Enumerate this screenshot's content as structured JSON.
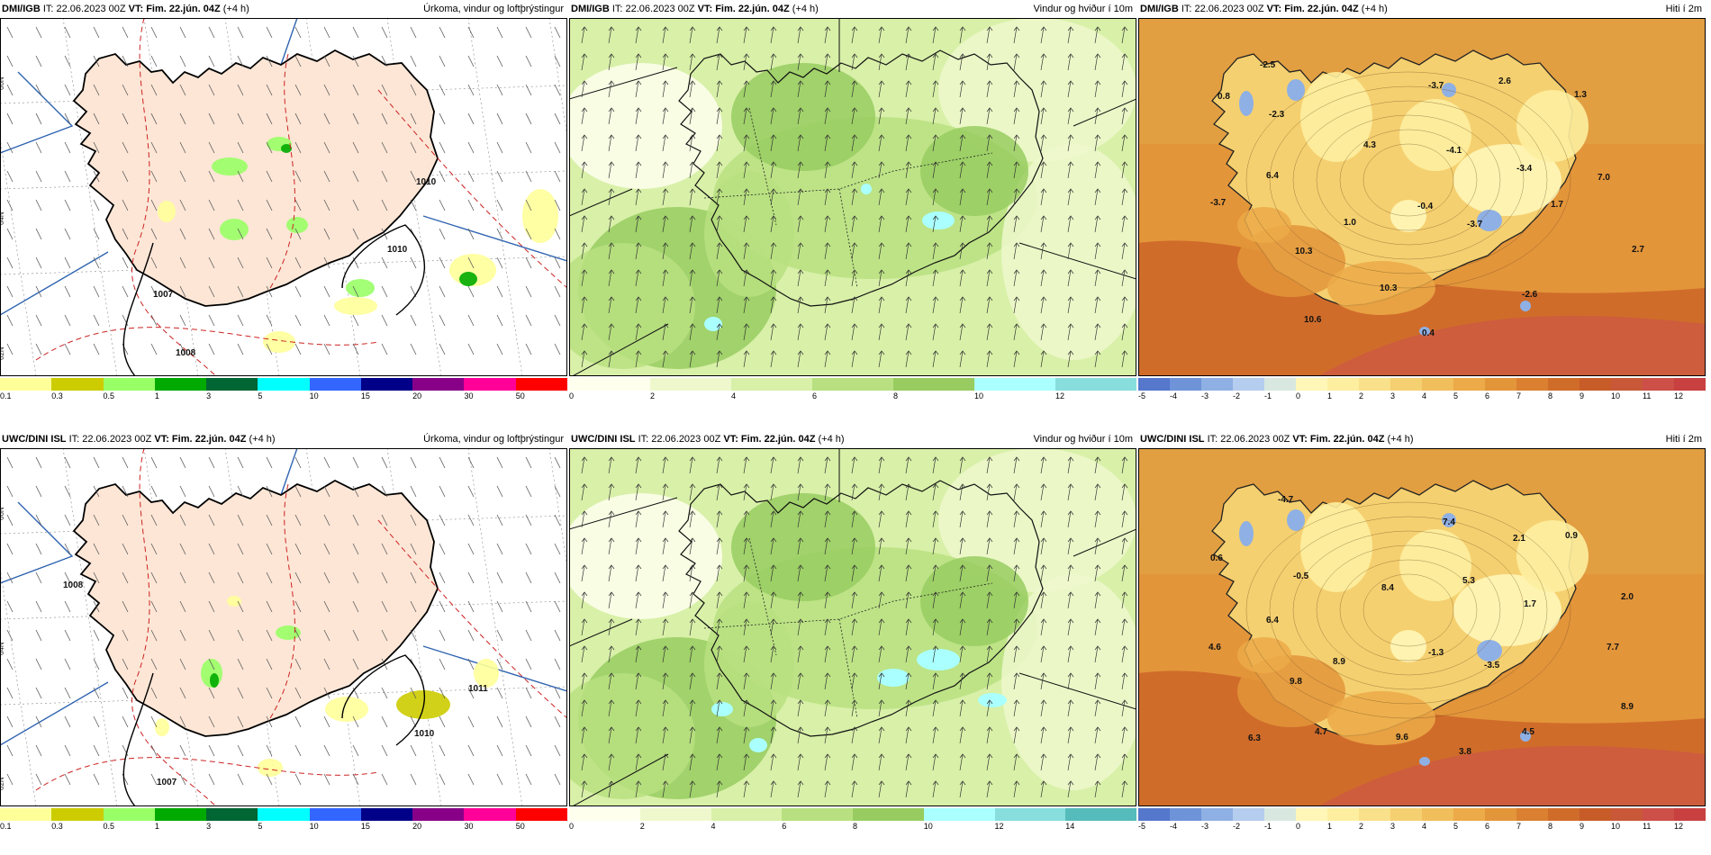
{
  "rows": [
    {
      "model": "DMI/IGB",
      "precip_model": "DMI/IGB",
      "it": "IT: 22.06.2023 00Z",
      "vt_label": "VT: Fim. 22.jún. 04Z",
      "lead": "(+4 h)",
      "temps": [
        {
          "v": "-2.5"
        },
        {
          "v": "-3.7"
        },
        {
          "v": "2.6"
        },
        {
          "v": "1.3"
        },
        {
          "v": "0.8"
        },
        {
          "v": "-2.3"
        },
        {
          "v": "4.3"
        },
        {
          "v": "-4.1"
        },
        {
          "v": "-3.4"
        },
        {
          "v": "7.0"
        },
        {
          "v": "6.4"
        },
        {
          "v": "-3.7"
        },
        {
          "v": "1.0"
        },
        {
          "v": "-0.4"
        },
        {
          "v": "-3.7"
        },
        {
          "v": "1.7"
        },
        {
          "v": "10.3"
        },
        {
          "v": "10.3"
        },
        {
          "v": "2.7"
        },
        {
          "v": "-2.6"
        },
        {
          "v": "10.6"
        },
        {
          "v": "0.4"
        }
      ],
      "isobars": [
        {
          "v": "1007"
        },
        {
          "v": "1008"
        },
        {
          "v": "1010"
        },
        {
          "v": "1010"
        }
      ],
      "wind_ticks": [
        "0",
        "2",
        "4",
        "6",
        "8",
        "10",
        "12"
      ]
    },
    {
      "model": "UWC/DINI",
      "precip_model": "UWC/DINI ISL",
      "it": "IT: 22.06.2023 00Z",
      "vt_label": "VT: Fim. 22.jún. 04Z",
      "lead": "(+4 h)",
      "temps": [
        {
          "v": "-4.7"
        },
        {
          "v": "7.4"
        },
        {
          "v": "2.1"
        },
        {
          "v": "0.9"
        },
        {
          "v": "0.6"
        },
        {
          "v": "-0.5"
        },
        {
          "v": "8.4"
        },
        {
          "v": "5.3"
        },
        {
          "v": "1.7"
        },
        {
          "v": "2.0"
        },
        {
          "v": "6.4"
        },
        {
          "v": "4.6"
        },
        {
          "v": "8.9"
        },
        {
          "v": "-1.3"
        },
        {
          "v": "-3.5"
        },
        {
          "v": "7.7"
        },
        {
          "v": "9.8"
        },
        {
          "v": "8.9"
        },
        {
          "v": "6.3"
        },
        {
          "v": "4.7"
        },
        {
          "v": "9.6"
        },
        {
          "v": "3.8"
        },
        {
          "v": "4.5"
        }
      ],
      "isobars": [
        {
          "v": "1007"
        },
        {
          "v": "1008"
        },
        {
          "v": "1010"
        },
        {
          "v": "1011"
        }
      ],
      "wind_ticks": [
        "0",
        "2",
        "4",
        "6",
        "8",
        "10",
        "12",
        "14"
      ]
    }
  ],
  "titles": {
    "precip": "Úrkoma, vindur og loftþrýstingur",
    "wind": "Vindur og hviður í 10m",
    "temp": "Hiti í 2m"
  },
  "precip_ticks": [
    "0.1",
    "0.3",
    "0.5",
    "1",
    "3",
    "5",
    "10",
    "15",
    "20",
    "30",
    "50"
  ],
  "temp_ticks": [
    "-5",
    "-4",
    "-3",
    "-2",
    "-1",
    "0",
    "1",
    "2",
    "3",
    "4",
    "5",
    "6",
    "7",
    "8",
    "9",
    "10",
    "11",
    "12"
  ],
  "lat_labels": [
    "66N",
    "64N",
    "62N"
  ],
  "colors": {
    "land": "#fde6d6",
    "precip_scale": [
      "#ffff99",
      "#cccc00",
      "#99ff66",
      "#00aa00",
      "#006633",
      "#00ffff",
      "#3366ff",
      "#000088",
      "#880088",
      "#ff0099",
      "#ff0000"
    ],
    "wind_scale": [
      "#ffffee",
      "#eef8cc",
      "#d8f0a8",
      "#b8e080",
      "#98cc60",
      "#aaffff",
      "#88dddd",
      "#55bbbb"
    ],
    "temp_scale": [
      "#5577cc",
      "#6f93d8",
      "#8fb0e4",
      "#b5cdee",
      "#d8e8e0",
      "#fff6b8",
      "#fdeea0",
      "#f9e08a",
      "#f5d070",
      "#f0be5a",
      "#ecaa48",
      "#e3953a",
      "#da8030",
      "#d06c2a",
      "#c85c28",
      "#c85838",
      "#cc5048",
      "#c84040"
    ]
  }
}
